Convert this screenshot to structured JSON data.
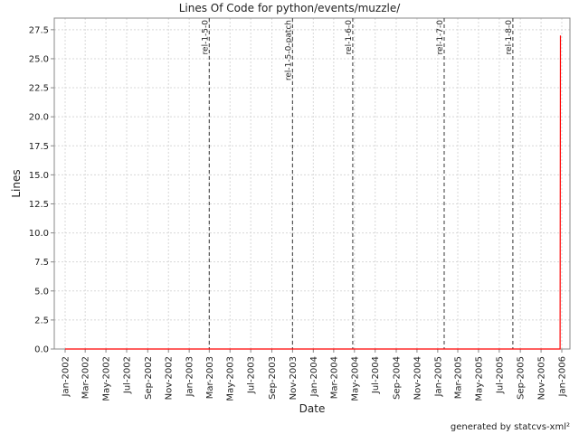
{
  "chart_data": {
    "type": "line",
    "title": "Lines Of Code for python/events/muzzle/",
    "xlabel": "Date",
    "ylabel": "Lines",
    "x_range": [
      "2002-01-01",
      "2006-01-01"
    ],
    "ylim": [
      0,
      28.5
    ],
    "y_ticks": [
      "0.0",
      "2.5",
      "5.0",
      "7.5",
      "10.0",
      "12.5",
      "15.0",
      "17.5",
      "20.0",
      "22.5",
      "25.0",
      "27.5"
    ],
    "x_ticks": [
      {
        "label": "Jan-2002",
        "date": "2002-01-01"
      },
      {
        "label": "Mar-2002",
        "date": "2002-03-01"
      },
      {
        "label": "May-2002",
        "date": "2002-05-01"
      },
      {
        "label": "Jul-2002",
        "date": "2002-07-01"
      },
      {
        "label": "Sep-2002",
        "date": "2002-09-01"
      },
      {
        "label": "Nov-2002",
        "date": "2002-11-01"
      },
      {
        "label": "Jan-2003",
        "date": "2003-01-01"
      },
      {
        "label": "Mar-2003",
        "date": "2003-03-01"
      },
      {
        "label": "May-2003",
        "date": "2003-05-01"
      },
      {
        "label": "Jul-2003",
        "date": "2003-07-01"
      },
      {
        "label": "Sep-2003",
        "date": "2003-09-01"
      },
      {
        "label": "Nov-2003",
        "date": "2003-11-01"
      },
      {
        "label": "Jan-2004",
        "date": "2004-01-01"
      },
      {
        "label": "Mar-2004",
        "date": "2004-03-01"
      },
      {
        "label": "May-2004",
        "date": "2004-05-01"
      },
      {
        "label": "Jul-2004",
        "date": "2004-07-01"
      },
      {
        "label": "Sep-2004",
        "date": "2004-09-01"
      },
      {
        "label": "Nov-2004",
        "date": "2004-11-01"
      },
      {
        "label": "Jan-2005",
        "date": "2005-01-01"
      },
      {
        "label": "Mar-2005",
        "date": "2005-03-01"
      },
      {
        "label": "May-2005",
        "date": "2005-05-01"
      },
      {
        "label": "Jul-2005",
        "date": "2005-07-01"
      },
      {
        "label": "Sep-2005",
        "date": "2005-09-01"
      },
      {
        "label": "Nov-2005",
        "date": "2005-11-01"
      },
      {
        "label": "Jan-2006",
        "date": "2006-01-01"
      }
    ],
    "series": [
      {
        "color": "#ff0000",
        "points": [
          {
            "x": "2002-01-01",
            "y": 0
          },
          {
            "x": "2005-12-27",
            "y": 0
          },
          {
            "x": "2005-12-28",
            "y": 27
          }
        ]
      }
    ],
    "release_markers": [
      {
        "label": "rel-1-5-0",
        "date": "2003-03-01"
      },
      {
        "label": "rel-1-5-0-patch",
        "date": "2003-11-01"
      },
      {
        "label": "rel-1-6-0",
        "date": "2004-04-26"
      },
      {
        "label": "rel-1-7-0",
        "date": "2005-01-20"
      },
      {
        "label": "rel-1-8-0",
        "date": "2005-08-10"
      }
    ],
    "grid": true,
    "legend": "none"
  },
  "footer": {
    "credit": "generated by statcvs-xml²"
  }
}
